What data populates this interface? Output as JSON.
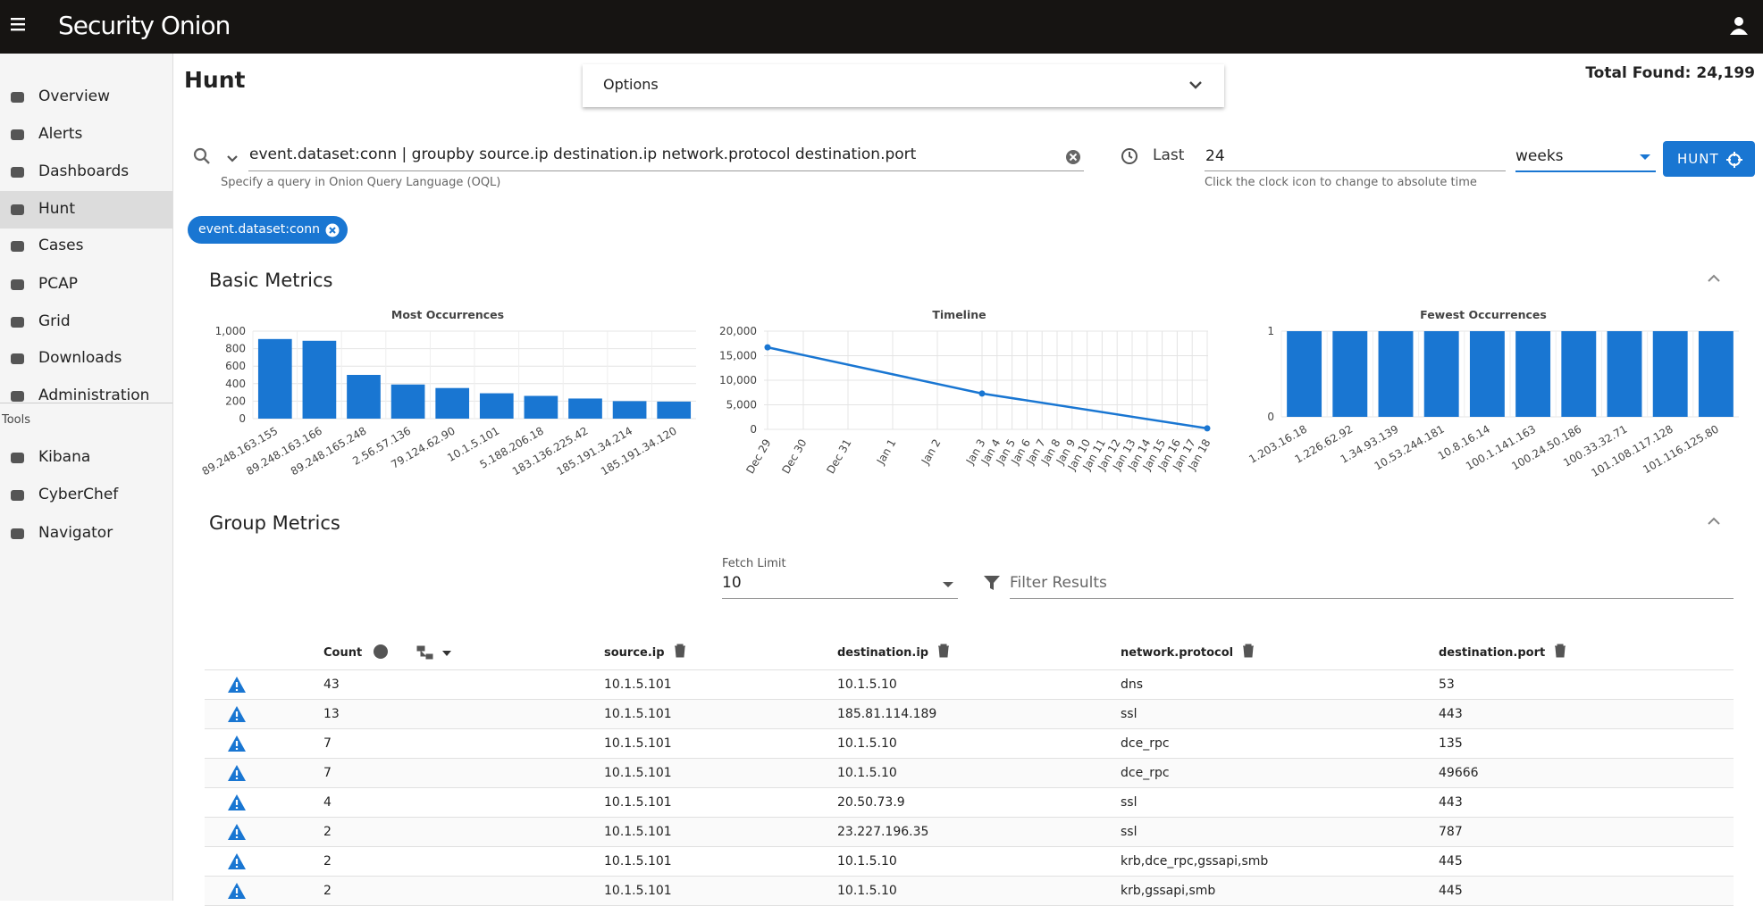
{
  "header": {
    "brand": "Security Onion"
  },
  "nav": {
    "items": [
      "Overview",
      "Alerts",
      "Dashboards",
      "Hunt",
      "Cases",
      "PCAP",
      "Grid",
      "Downloads",
      "Administration"
    ],
    "tools_heading": "Tools",
    "tools": [
      "Kibana",
      "CyberChef",
      "Navigator"
    ]
  },
  "page": {
    "title": "Hunt",
    "options": "Options",
    "total_found": "Total Found: 24,199"
  },
  "query": {
    "text": "event.dataset:conn | groupby source.ip destination.ip network.protocol destination.port",
    "hint": "Specify a query in Onion Query Language (OQL)",
    "last_label": "Last",
    "last_value": "24",
    "unit": "weeks",
    "time_hint": "Click the clock icon to change to absolute time",
    "button": "HUNT",
    "chip": "event.dataset:conn"
  },
  "basic_metrics": {
    "title": "Basic Metrics"
  },
  "chart_data": [
    {
      "type": "bar",
      "title": "Most Occurrences",
      "categories": [
        "89.248.163.155",
        "89.248.163.166",
        "89.248.165.248",
        "2.56.57.136",
        "79.124.62.90",
        "10.1.5.101",
        "5.188.206.18",
        "183.136.225.42",
        "185.191.34.214",
        "185.191.34.120"
      ],
      "values": [
        910,
        890,
        500,
        390,
        350,
        290,
        260,
        230,
        200,
        195
      ],
      "color": "#1976d2",
      "ylim": [
        0,
        1000
      ],
      "yticks": [
        0,
        200,
        400,
        600,
        800,
        {
          "value": 1000,
          "label": "1,000"
        }
      ],
      "grid": true
    },
    {
      "type": "line",
      "title": "Timeline",
      "x": [
        "Dec 29",
        "Jan 3",
        "Jan 18"
      ],
      "values": [
        16700,
        7300,
        199
      ],
      "color": "#1976d2",
      "xticks": [
        "Dec 29",
        "Dec 30",
        "Dec 31",
        "Jan 1",
        "Jan 2",
        "Jan 3",
        "Jan 4",
        "Jan 5",
        "Jan 6",
        "Jan 7",
        "Jan 8",
        "Jan 9",
        "Jan 10",
        "Jan 11",
        "Jan 12",
        "Jan 13",
        "Jan 14",
        "Jan 15",
        "Jan 16",
        "Jan 17",
        "Jan 18"
      ],
      "ylim": [
        0,
        20000
      ],
      "yticks": [
        0,
        {
          "value": 5000,
          "label": "5,000"
        },
        {
          "value": 10000,
          "label": "10,000"
        },
        {
          "value": 15000,
          "label": "15,000"
        },
        {
          "value": 20000,
          "label": "20,000"
        }
      ],
      "grid": true
    },
    {
      "type": "bar",
      "title": "Fewest Occurrences",
      "categories": [
        "1.203.16.18",
        "1.226.62.92",
        "1.34.93.139",
        "10.53.244.181",
        "10.8.16.14",
        "100.1.141.163",
        "100.24.50.186",
        "100.33.32.71",
        "101.108.117.128",
        "101.116.125.80"
      ],
      "values": [
        1,
        1,
        1,
        1,
        1,
        1,
        1,
        1,
        1,
        1
      ],
      "color": "#1976d2",
      "ylim": [
        0,
        1
      ],
      "yticks": [
        0,
        1
      ],
      "grid": true
    }
  ],
  "group_metrics": {
    "title": "Group Metrics",
    "fetch_limit_label": "Fetch Limit",
    "fetch_limit": "10",
    "filter_placeholder": "Filter Results"
  },
  "table": {
    "columns": [
      "Count",
      "source.ip",
      "destination.ip",
      "network.protocol",
      "destination.port"
    ],
    "rows": [
      [
        43,
        "10.1.5.101",
        "10.1.5.10",
        "dns",
        53
      ],
      [
        13,
        "10.1.5.101",
        "185.81.114.189",
        "ssl",
        443
      ],
      [
        7,
        "10.1.5.101",
        "10.1.5.10",
        "dce_rpc",
        135
      ],
      [
        7,
        "10.1.5.101",
        "10.1.5.10",
        "dce_rpc",
        49666
      ],
      [
        4,
        "10.1.5.101",
        "20.50.73.9",
        "ssl",
        443
      ],
      [
        2,
        "10.1.5.101",
        "23.227.196.35",
        "ssl",
        787
      ],
      [
        2,
        "10.1.5.101",
        "10.1.5.10",
        "krb,dce_rpc,gssapi,smb",
        445
      ],
      [
        2,
        "10.1.5.101",
        "10.1.5.10",
        "krb,gssapi,smb",
        445
      ]
    ]
  }
}
